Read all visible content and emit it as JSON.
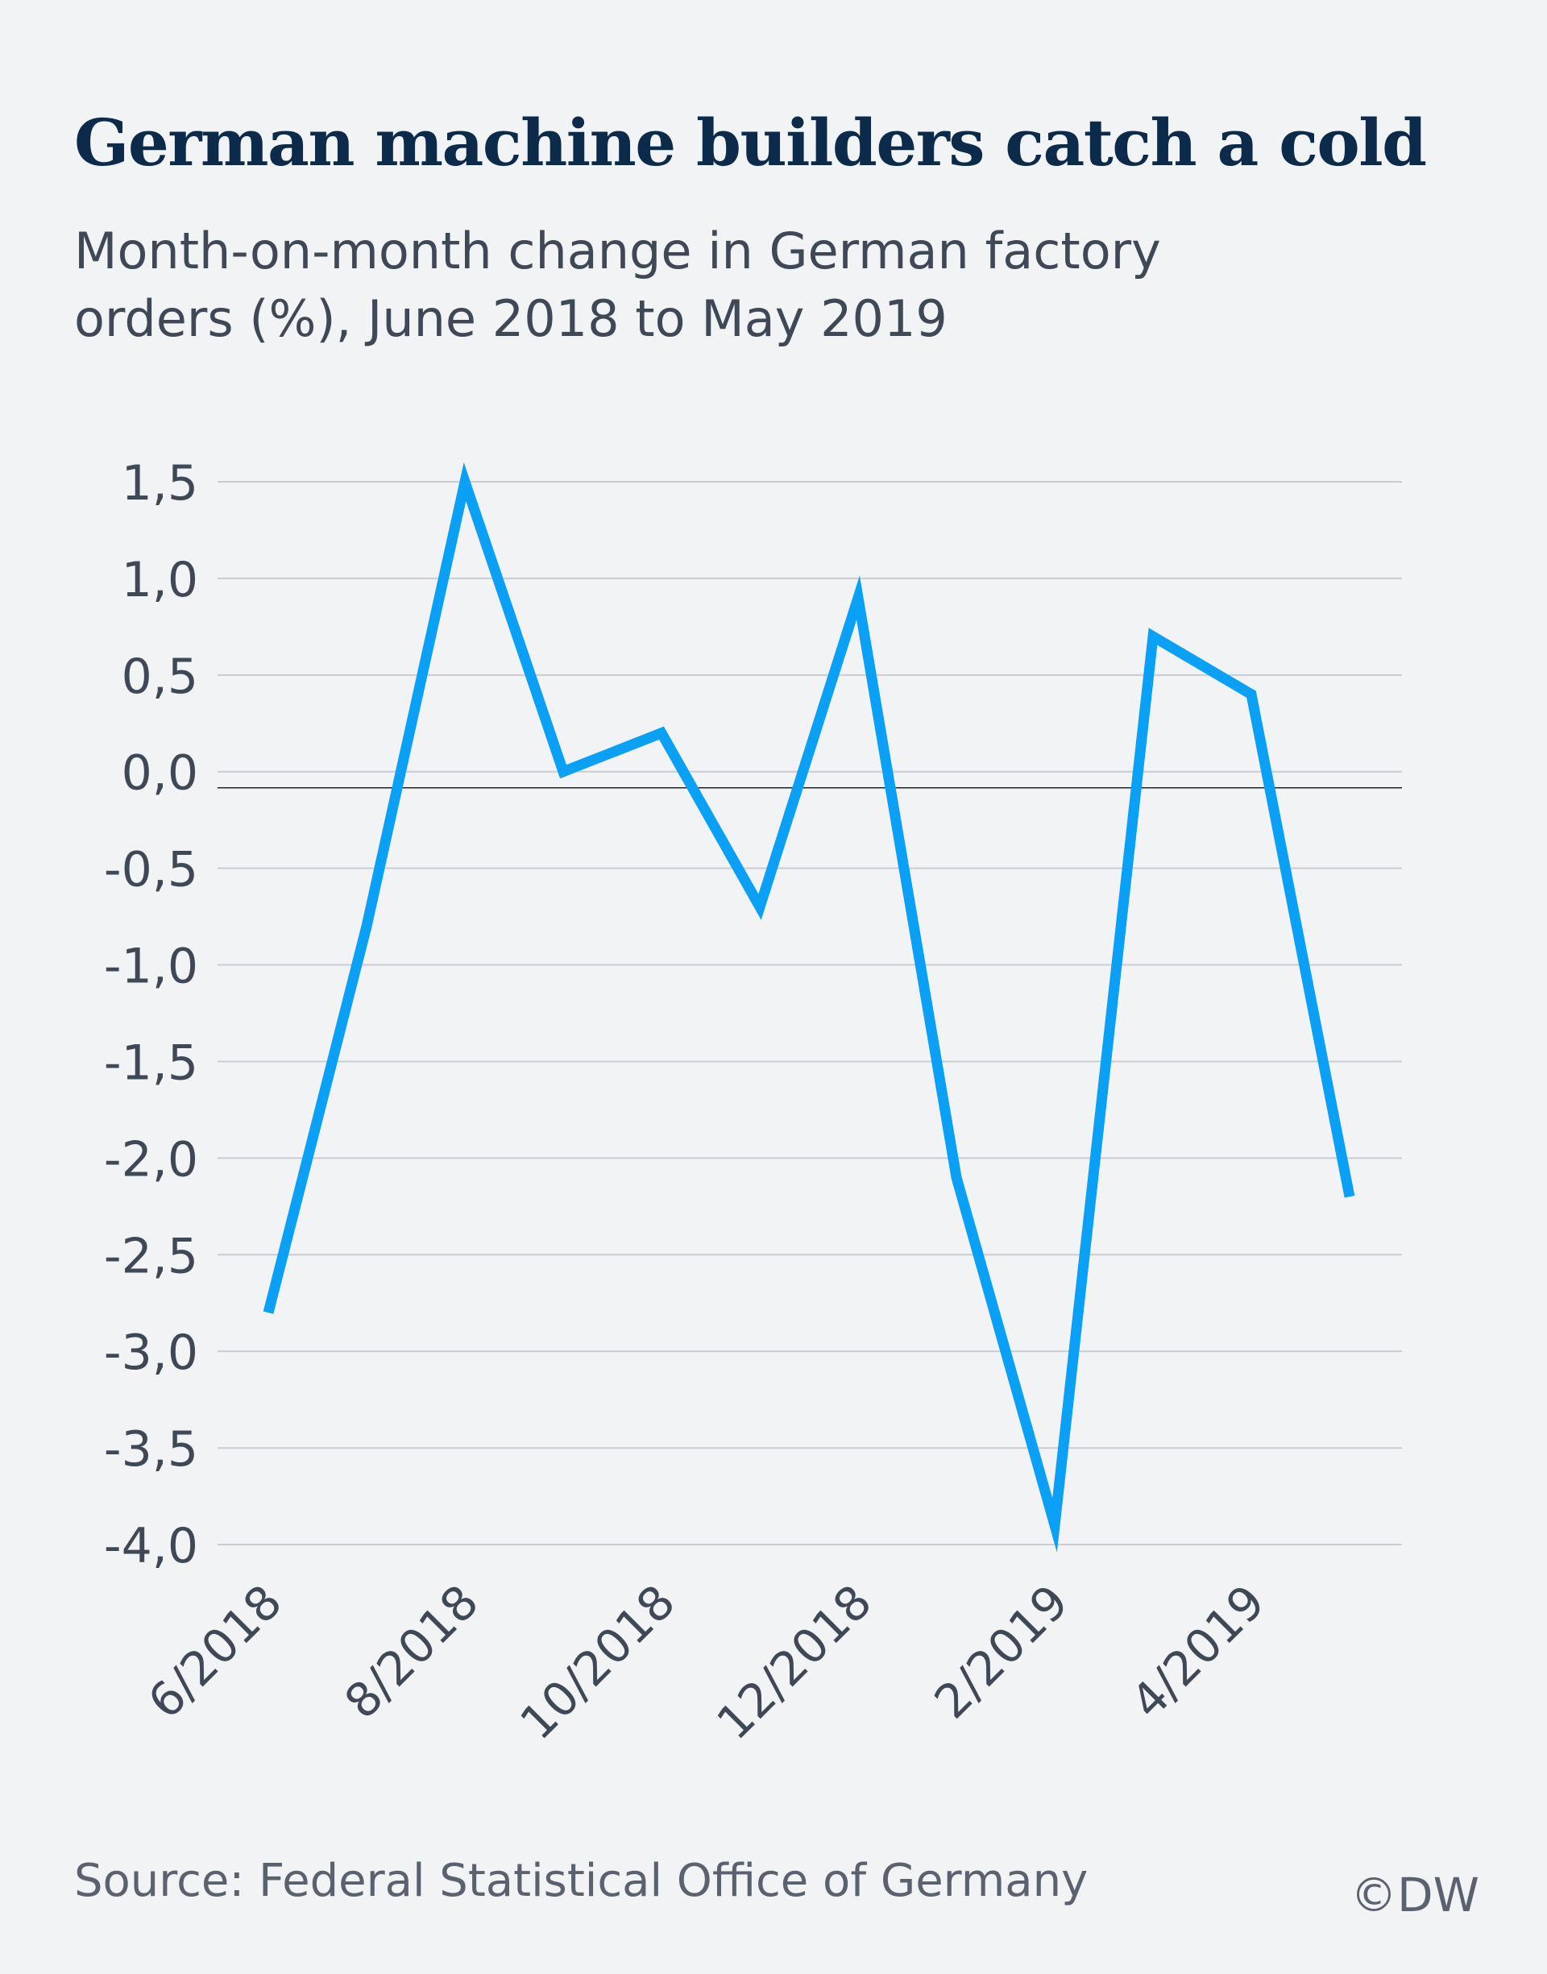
{
  "title": "German machine builders catch a cold",
  "subtitle": "Month-on-month change in German factory orders (%), June 2018 to May 2019",
  "source": "Source: Federal Statistical Office of Germany",
  "logo": "©DW",
  "colors": {
    "line": "#0aa0f5",
    "grid": "#c9ccd1",
    "zero_line": "#222222",
    "tick_text": "#3f4856"
  },
  "chart_data": {
    "type": "line",
    "title": "German machine builders catch a cold",
    "subtitle": "Month-on-month change in German factory orders (%), June 2018 to May 2019",
    "x": [
      "6/2018",
      "7/2018",
      "8/2018",
      "9/2018",
      "10/2018",
      "11/2018",
      "12/2018",
      "1/2019",
      "2/2019",
      "3/2019",
      "4/2019",
      "5/2019"
    ],
    "x_tick_labels": [
      "6/2018",
      "8/2018",
      "10/2018",
      "12/2018",
      "2/2019",
      "4/2019"
    ],
    "y_ticks": [
      "1,5",
      "1,0",
      "0,5",
      "0,0",
      "-0,5",
      "-1,0",
      "-1,5",
      "-2,0",
      "-2,5",
      "-3,0",
      "-3,5",
      "-4,0"
    ],
    "y_tick_values": [
      1.5,
      1.0,
      0.5,
      0.0,
      -0.5,
      -1.0,
      -1.5,
      -2.0,
      -2.5,
      -3.0,
      -3.5,
      -4.0
    ],
    "series": [
      {
        "values": [
          -2.8,
          -0.8,
          1.5,
          0.0,
          0.2,
          -0.7,
          0.9,
          -2.1,
          -3.9,
          0.7,
          0.4,
          -2.2
        ]
      }
    ],
    "ylim": [
      -4.0,
      1.5
    ],
    "grid": true,
    "legend": "none"
  }
}
